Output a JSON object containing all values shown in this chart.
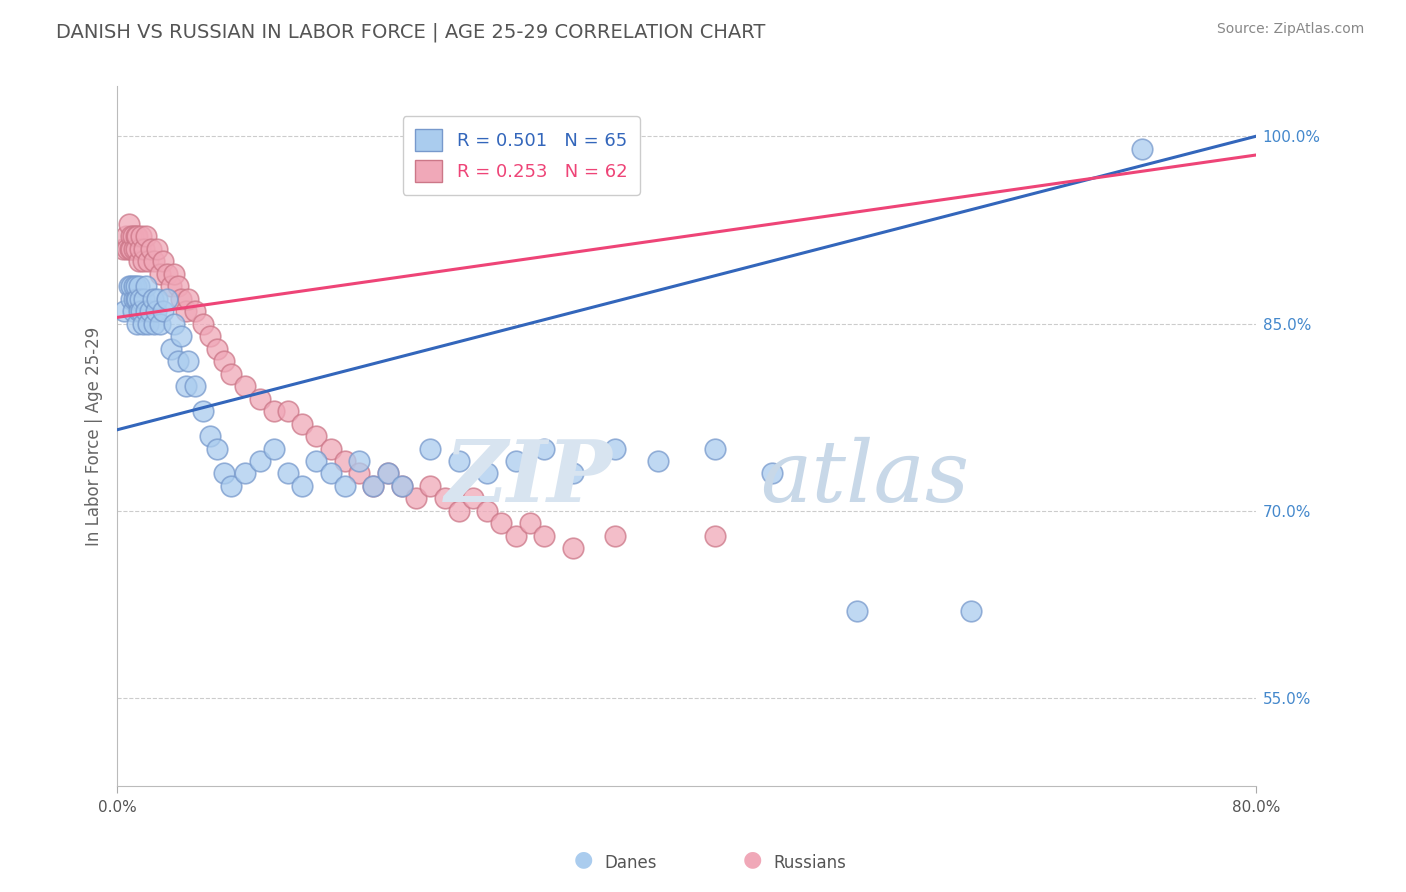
{
  "title": "DANISH VS RUSSIAN IN LABOR FORCE | AGE 25-29 CORRELATION CHART",
  "source": "Source: ZipAtlas.com",
  "ylabel": "In Labor Force | Age 25-29",
  "xlim": [
    0.0,
    0.8
  ],
  "ylim": [
    0.48,
    1.04
  ],
  "ytick_positions": [
    0.55,
    0.7,
    0.85,
    1.0
  ],
  "ytick_labels": [
    "55.0%",
    "70.0%",
    "85.0%",
    "100.0%"
  ],
  "grid_color": "#cccccc",
  "background_color": "#ffffff",
  "title_color": "#555555",
  "danes_color": "#aaccee",
  "danes_edge_color": "#7799cc",
  "russians_color": "#f0a8b8",
  "russians_edge_color": "#cc7788",
  "danes_label": "Danes",
  "russians_label": "Russians",
  "danes_R": 0.501,
  "danes_N": 65,
  "russians_R": 0.253,
  "russians_N": 62,
  "danes_line_color": "#3366bb",
  "russians_line_color": "#ee4477",
  "watermark_zip": "ZIP",
  "watermark_atlas": "atlas",
  "danes_x": [
    0.005,
    0.008,
    0.01,
    0.01,
    0.011,
    0.012,
    0.012,
    0.013,
    0.013,
    0.014,
    0.014,
    0.015,
    0.015,
    0.016,
    0.017,
    0.018,
    0.019,
    0.02,
    0.02,
    0.022,
    0.023,
    0.025,
    0.026,
    0.027,
    0.028,
    0.03,
    0.032,
    0.035,
    0.038,
    0.04,
    0.043,
    0.045,
    0.048,
    0.05,
    0.055,
    0.06,
    0.065,
    0.07,
    0.075,
    0.08,
    0.09,
    0.1,
    0.11,
    0.12,
    0.13,
    0.14,
    0.15,
    0.16,
    0.17,
    0.18,
    0.19,
    0.2,
    0.22,
    0.24,
    0.26,
    0.28,
    0.3,
    0.32,
    0.35,
    0.38,
    0.42,
    0.46,
    0.52,
    0.6,
    0.72
  ],
  "danes_y": [
    0.86,
    0.88,
    0.87,
    0.88,
    0.86,
    0.87,
    0.88,
    0.87,
    0.88,
    0.85,
    0.87,
    0.86,
    0.88,
    0.87,
    0.86,
    0.85,
    0.87,
    0.86,
    0.88,
    0.85,
    0.86,
    0.87,
    0.85,
    0.86,
    0.87,
    0.85,
    0.86,
    0.87,
    0.83,
    0.85,
    0.82,
    0.84,
    0.8,
    0.82,
    0.8,
    0.78,
    0.76,
    0.75,
    0.73,
    0.72,
    0.73,
    0.74,
    0.75,
    0.73,
    0.72,
    0.74,
    0.73,
    0.72,
    0.74,
    0.72,
    0.73,
    0.72,
    0.75,
    0.74,
    0.73,
    0.74,
    0.75,
    0.73,
    0.75,
    0.74,
    0.75,
    0.73,
    0.62,
    0.62,
    0.99
  ],
  "russians_x": [
    0.004,
    0.006,
    0.007,
    0.008,
    0.009,
    0.01,
    0.01,
    0.011,
    0.012,
    0.013,
    0.013,
    0.014,
    0.015,
    0.016,
    0.017,
    0.018,
    0.019,
    0.02,
    0.022,
    0.024,
    0.026,
    0.028,
    0.03,
    0.032,
    0.035,
    0.038,
    0.04,
    0.043,
    0.045,
    0.048,
    0.05,
    0.055,
    0.06,
    0.065,
    0.07,
    0.075,
    0.08,
    0.09,
    0.1,
    0.11,
    0.12,
    0.13,
    0.14,
    0.15,
    0.16,
    0.17,
    0.18,
    0.19,
    0.2,
    0.21,
    0.22,
    0.23,
    0.24,
    0.25,
    0.26,
    0.27,
    0.28,
    0.29,
    0.3,
    0.32,
    0.35,
    0.42
  ],
  "russians_y": [
    0.91,
    0.92,
    0.91,
    0.93,
    0.91,
    0.92,
    0.91,
    0.92,
    0.91,
    0.92,
    0.91,
    0.92,
    0.9,
    0.91,
    0.92,
    0.9,
    0.91,
    0.92,
    0.9,
    0.91,
    0.9,
    0.91,
    0.89,
    0.9,
    0.89,
    0.88,
    0.89,
    0.88,
    0.87,
    0.86,
    0.87,
    0.86,
    0.85,
    0.84,
    0.83,
    0.82,
    0.81,
    0.8,
    0.79,
    0.78,
    0.78,
    0.77,
    0.76,
    0.75,
    0.74,
    0.73,
    0.72,
    0.73,
    0.72,
    0.71,
    0.72,
    0.71,
    0.7,
    0.71,
    0.7,
    0.69,
    0.68,
    0.69,
    0.68,
    0.67,
    0.68,
    0.68
  ]
}
